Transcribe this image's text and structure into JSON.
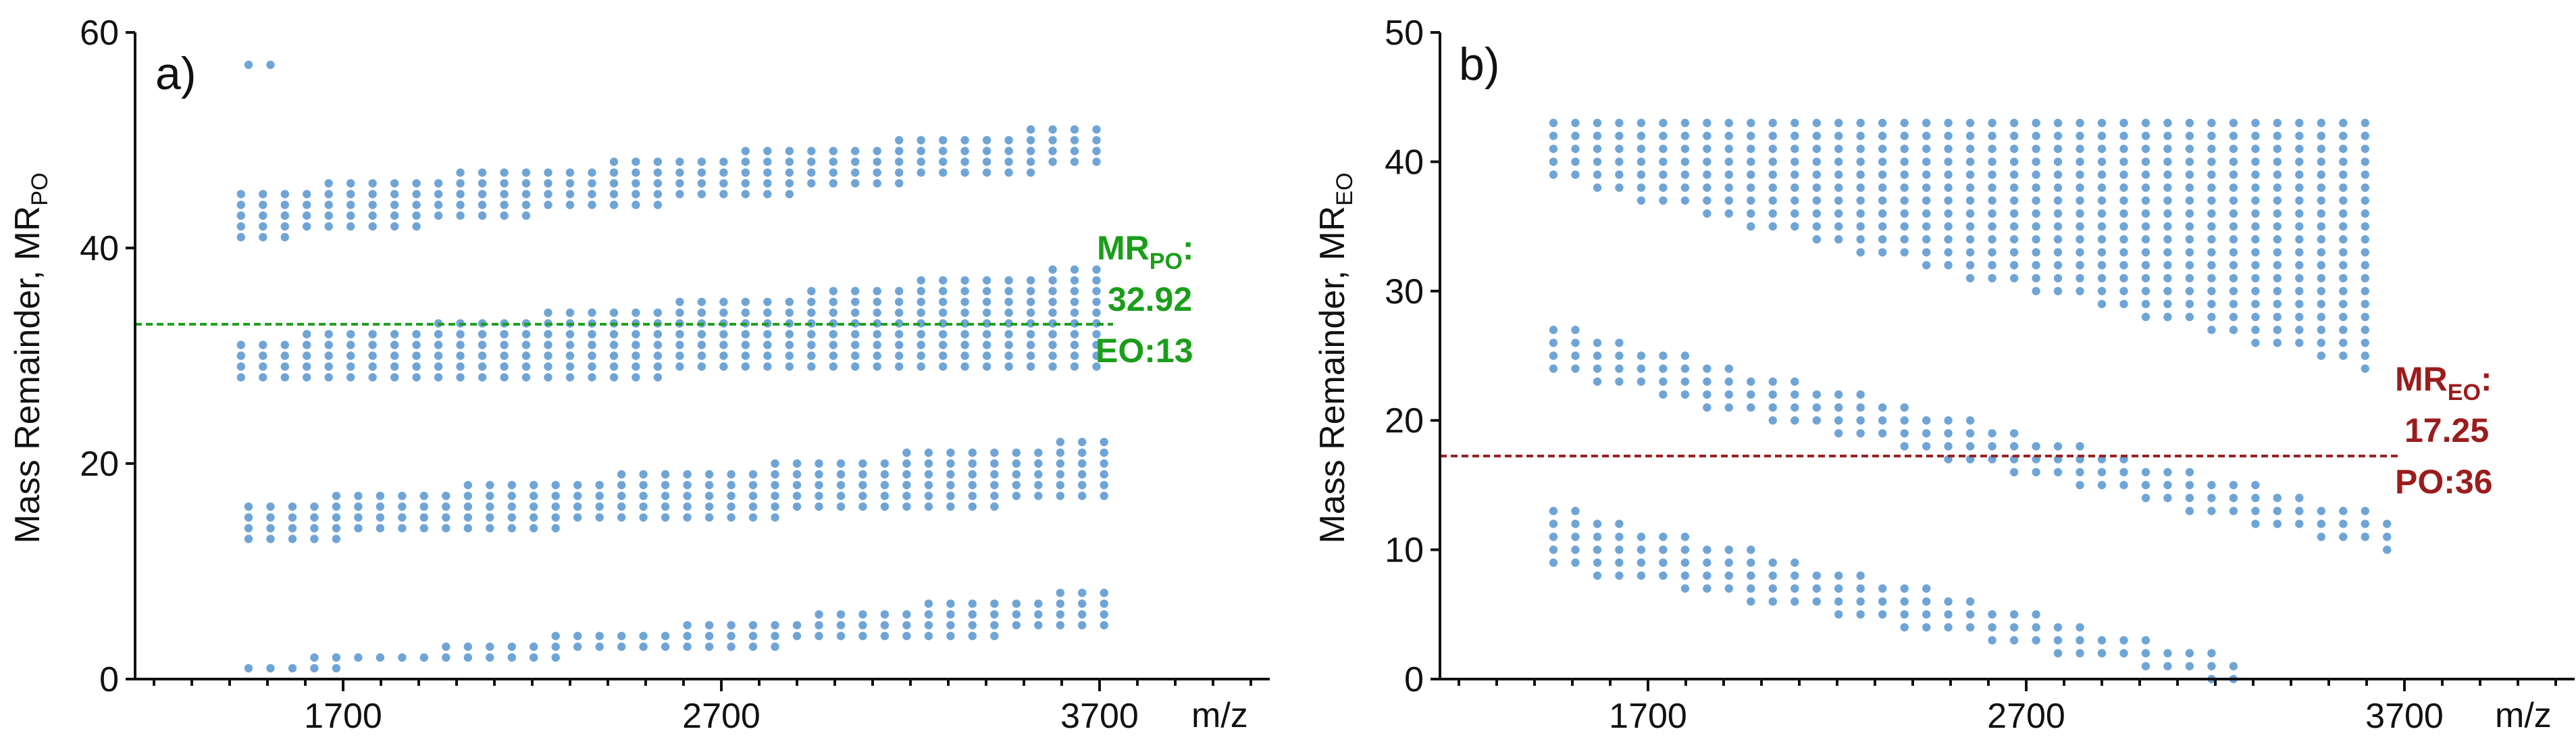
{
  "colors": {
    "points": "#6FA5D6",
    "panel_a_line": "#1A9E1A",
    "panel_b_line": "#9B1C1C",
    "axis": "#111111"
  },
  "chart_data": [
    {
      "type": "scatter",
      "panel_label": "a)",
      "title": "",
      "xlabel": "m/z",
      "ylabel": "Mass Remainder, MR",
      "ylabel_sub": "PO",
      "xlim": [
        1150,
        4150
      ],
      "ylim": [
        0,
        60
      ],
      "x_ticks": [
        1700,
        2700,
        3700
      ],
      "x_tick_labels": [
        "1700",
        "2700",
        "3700"
      ],
      "y_ticks": [
        0,
        20,
        40,
        60
      ],
      "y_tick_labels": [
        "0",
        "20",
        "40",
        "60"
      ],
      "reference_line": {
        "y": 32.92,
        "style": "dashed"
      },
      "annotation": {
        "main": "MR",
        "sub": "PO",
        "suffix": ":",
        "value": "32.92",
        "extra": "EO:13"
      },
      "x_step": 58,
      "y_step": 1,
      "point_groups": [
        {
          "name": "isolated",
          "start": 1450,
          "end": 1520,
          "low_start": 57,
          "low_end": 57,
          "high_start": 57,
          "high_end": 57
        },
        {
          "name": "cluster-top",
          "start": 1430,
          "end": 3700,
          "low_start": 41,
          "low_end": 48,
          "high_start": 45,
          "high_end": 51
        },
        {
          "name": "cluster-2",
          "start": 1430,
          "end": 3700,
          "low_start": 28,
          "low_end": 29,
          "high_start": 31,
          "high_end": 38
        },
        {
          "name": "cluster-3",
          "start": 1450,
          "end": 3760,
          "low_start": 13,
          "low_end": 17,
          "high_start": 16,
          "high_end": 22
        },
        {
          "name": "cluster-4",
          "start": 1450,
          "end": 3720,
          "low_start": 1,
          "low_end": 5,
          "high_start": 1,
          "high_end": 8
        }
      ]
    },
    {
      "type": "scatter",
      "panel_label": "b)",
      "title": "",
      "xlabel": "m/z",
      "ylabel": "Mass Remainder, MR",
      "ylabel_sub": "EO",
      "xlim": [
        1150,
        4150
      ],
      "ylim": [
        0,
        50
      ],
      "x_ticks": [
        1700,
        2700,
        3700
      ],
      "x_tick_labels": [
        "1700",
        "2700",
        "3700"
      ],
      "y_ticks": [
        0,
        10,
        20,
        30,
        40,
        50
      ],
      "y_tick_labels": [
        "0",
        "10",
        "20",
        "30",
        "40",
        "50"
      ],
      "reference_line": {
        "y": 17.25,
        "style": "dashed"
      },
      "annotation": {
        "main": "MR",
        "sub": "EO",
        "suffix": ":",
        "value": "17.25",
        "extra": "PO:36"
      },
      "x_step": 58,
      "y_step": 1,
      "point_groups": [
        {
          "name": "cluster-top",
          "start": 1450,
          "end": 3650,
          "low_start": 39,
          "low_end": 24,
          "high_start": 43,
          "high_end": 43
        },
        {
          "name": "cluster-mid",
          "start": 1450,
          "end": 3680,
          "low_start": 24,
          "low_end": 10,
          "high_start": 27,
          "high_end": 12
        },
        {
          "name": "cluster-bottom",
          "start": 1450,
          "end": 3280,
          "low_start": 9,
          "low_end": 0,
          "high_start": 13,
          "high_end": 1
        }
      ]
    }
  ]
}
